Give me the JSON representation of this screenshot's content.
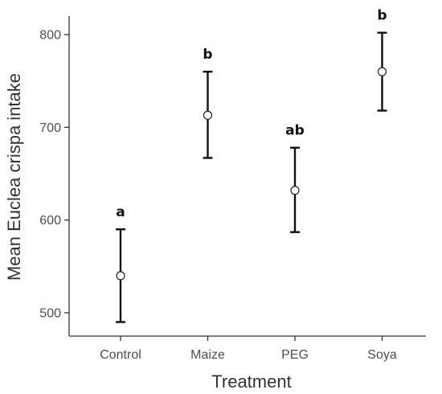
{
  "chart_data": {
    "type": "scatter",
    "title": "",
    "xlabel": "Treatment",
    "ylabel": "Mean Euclea crispa intake",
    "categories": [
      "Control",
      "Maize",
      "PEG",
      "Soya"
    ],
    "values": [
      540,
      713,
      632,
      760
    ],
    "error_lower": [
      490,
      667,
      587,
      718
    ],
    "error_upper": [
      590,
      760,
      678,
      802
    ],
    "significance_labels": [
      "a",
      "b",
      "ab",
      "b"
    ],
    "yticks": [
      500,
      600,
      700,
      800
    ],
    "ylim": [
      465,
      825
    ],
    "grid": false,
    "legend": "none"
  }
}
